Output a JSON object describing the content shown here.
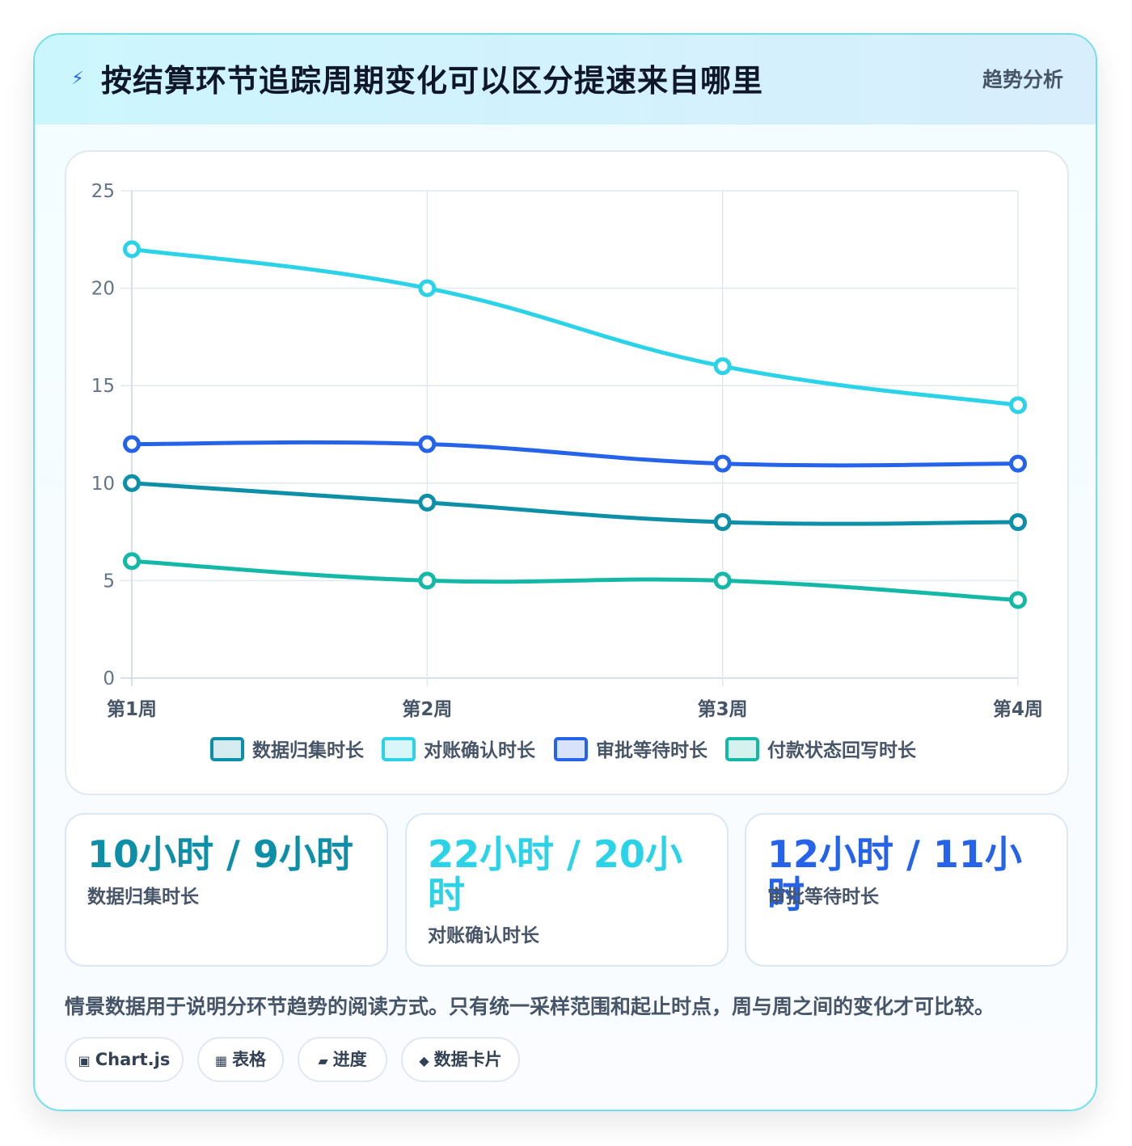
{
  "header": {
    "icon": "lightning-icon",
    "title": "按结算环节追踪周期变化可以区分提速来自哪里",
    "badge": "趋势分析"
  },
  "chart_data": {
    "type": "line",
    "categories": [
      "第1周",
      "第2周",
      "第3周",
      "第4周"
    ],
    "y_ticks": [
      "0",
      "5",
      "10",
      "15",
      "20",
      "25"
    ],
    "ylim": [
      0,
      25
    ],
    "grid": true,
    "legend_placement": "bottom",
    "series": [
      {
        "name": "数据归集时长",
        "color": "#0e8fa8",
        "values": [
          10,
          9,
          8,
          8
        ]
      },
      {
        "name": "对账确认时长",
        "color": "#2ad3e8",
        "values": [
          22,
          20,
          16,
          14
        ]
      },
      {
        "name": "审批等待时长",
        "color": "#2563eb",
        "values": [
          12,
          12,
          11,
          11
        ]
      },
      {
        "name": "付款状态回写时长",
        "color": "#14b8a6",
        "values": [
          6,
          5,
          5,
          4
        ]
      }
    ]
  },
  "stats": [
    {
      "value": "10小时 / 9小时",
      "label": "数据归集时长",
      "color": "#0e8fa8"
    },
    {
      "value": "22小时 / 20小时",
      "label": "对账确认时长",
      "color": "#2ad3e8"
    },
    {
      "value": "12小时 / 11小时",
      "label": "审批等待时长",
      "color": "#2563eb"
    }
  ],
  "note": "情景数据用于说明分环节趋势的阅读方式。只有统一采样范围和起止时点，周与周之间的变化才可比较。",
  "tags": [
    {
      "icon": "chart-icon",
      "label": "Chart.js"
    },
    {
      "icon": "table-icon",
      "label": "表格"
    },
    {
      "icon": "progress-icon",
      "label": "进度"
    },
    {
      "icon": "diamond-icon",
      "label": "数据卡片"
    }
  ]
}
